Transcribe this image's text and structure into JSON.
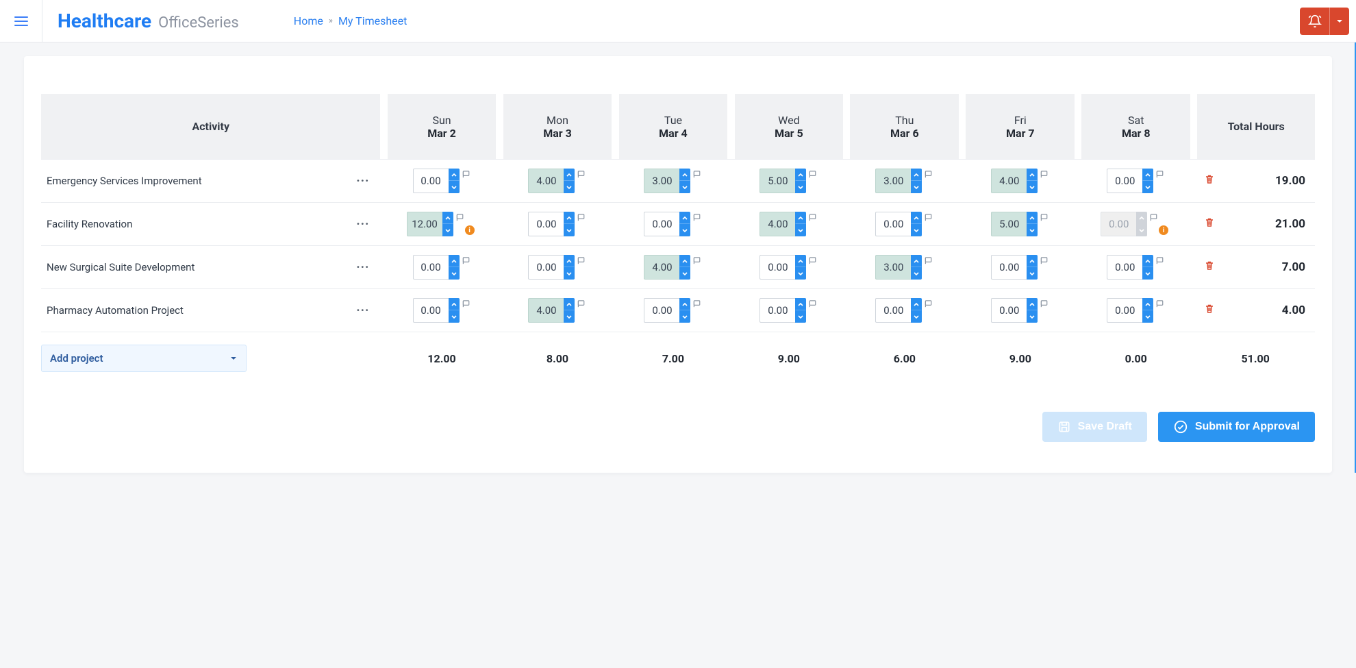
{
  "header": {
    "brand_main": "Healthcare",
    "brand_sub": "OfficeSeries",
    "breadcrumb_home": "Home",
    "breadcrumb_sep": "»",
    "breadcrumb_current": "My Timesheet"
  },
  "colors": {
    "accent": "#2b95f2",
    "alert": "#d9472d",
    "card_bg": "#ffffff",
    "page_bg": "#f5f6f8",
    "value_bg": "#cfe4de"
  },
  "table": {
    "activity_header": "Activity",
    "total_header": "Total Hours",
    "days": [
      {
        "weekday": "Sun",
        "date": "Mar 2"
      },
      {
        "weekday": "Mon",
        "date": "Mar 3"
      },
      {
        "weekday": "Tue",
        "date": "Mar 4"
      },
      {
        "weekday": "Wed",
        "date": "Mar 5"
      },
      {
        "weekday": "Thu",
        "date": "Mar 6"
      },
      {
        "weekday": "Fri",
        "date": "Mar 7"
      },
      {
        "weekday": "Sat",
        "date": "Mar 8"
      }
    ],
    "rows": [
      {
        "activity": "Emergency Services Improvement",
        "cells": [
          {
            "value": "0.00",
            "has_value": false,
            "warn": false,
            "disabled": false
          },
          {
            "value": "4.00",
            "has_value": true,
            "warn": false,
            "disabled": false
          },
          {
            "value": "3.00",
            "has_value": true,
            "warn": false,
            "disabled": false
          },
          {
            "value": "5.00",
            "has_value": true,
            "warn": false,
            "disabled": false
          },
          {
            "value": "3.00",
            "has_value": true,
            "warn": false,
            "disabled": false
          },
          {
            "value": "4.00",
            "has_value": true,
            "warn": false,
            "disabled": false
          },
          {
            "value": "0.00",
            "has_value": false,
            "warn": false,
            "disabled": false
          }
        ],
        "total": "19.00"
      },
      {
        "activity": "Facility Renovation",
        "cells": [
          {
            "value": "12.00",
            "has_value": true,
            "warn": true,
            "disabled": false
          },
          {
            "value": "0.00",
            "has_value": false,
            "warn": false,
            "disabled": false
          },
          {
            "value": "0.00",
            "has_value": false,
            "warn": false,
            "disabled": false
          },
          {
            "value": "4.00",
            "has_value": true,
            "warn": false,
            "disabled": false
          },
          {
            "value": "0.00",
            "has_value": false,
            "warn": false,
            "disabled": false
          },
          {
            "value": "5.00",
            "has_value": true,
            "warn": false,
            "disabled": false
          },
          {
            "value": "0.00",
            "has_value": false,
            "warn": true,
            "disabled": true
          }
        ],
        "total": "21.00"
      },
      {
        "activity": "New Surgical Suite Development",
        "cells": [
          {
            "value": "0.00",
            "has_value": false,
            "warn": false,
            "disabled": false
          },
          {
            "value": "0.00",
            "has_value": false,
            "warn": false,
            "disabled": false
          },
          {
            "value": "4.00",
            "has_value": true,
            "warn": false,
            "disabled": false
          },
          {
            "value": "0.00",
            "has_value": false,
            "warn": false,
            "disabled": false
          },
          {
            "value": "3.00",
            "has_value": true,
            "warn": false,
            "disabled": false
          },
          {
            "value": "0.00",
            "has_value": false,
            "warn": false,
            "disabled": false
          },
          {
            "value": "0.00",
            "has_value": false,
            "warn": false,
            "disabled": false
          }
        ],
        "total": "7.00"
      },
      {
        "activity": "Pharmacy Automation Project",
        "cells": [
          {
            "value": "0.00",
            "has_value": false,
            "warn": false,
            "disabled": false
          },
          {
            "value": "4.00",
            "has_value": true,
            "warn": false,
            "disabled": false
          },
          {
            "value": "0.00",
            "has_value": false,
            "warn": false,
            "disabled": false
          },
          {
            "value": "0.00",
            "has_value": false,
            "warn": false,
            "disabled": false
          },
          {
            "value": "0.00",
            "has_value": false,
            "warn": false,
            "disabled": false
          },
          {
            "value": "0.00",
            "has_value": false,
            "warn": false,
            "disabled": false
          },
          {
            "value": "0.00",
            "has_value": false,
            "warn": false,
            "disabled": false
          }
        ],
        "total": "4.00"
      }
    ],
    "day_totals": [
      "12.00",
      "8.00",
      "7.00",
      "9.00",
      "6.00",
      "9.00",
      "0.00"
    ],
    "grand_total": "51.00"
  },
  "controls": {
    "add_project": "Add project",
    "save_draft": "Save Draft",
    "submit": "Submit for Approval"
  }
}
